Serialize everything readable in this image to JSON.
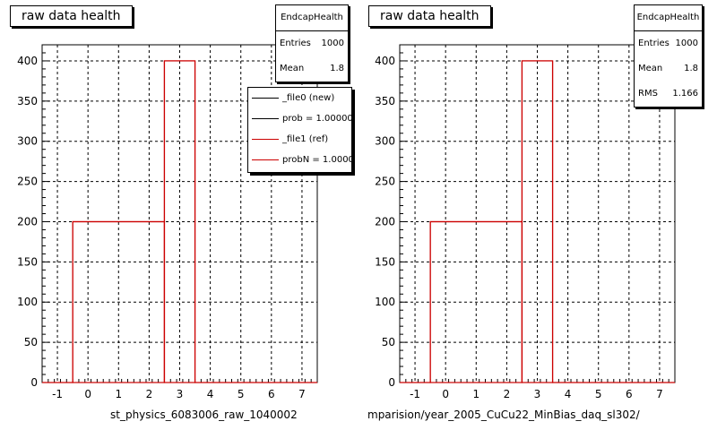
{
  "colors": {
    "frame": "#000000",
    "ref_line": "#cc0000",
    "new_line": "#000000",
    "background": "#ffffff"
  },
  "footer_text": "",
  "panels": [
    {
      "title": "raw data health",
      "xlabel": "st_physics_6083006_raw_1040002",
      "stats": {
        "name": "EndcapHealth",
        "rows": [
          {
            "label": "Entries",
            "value": "1000"
          },
          {
            "label": "Mean",
            "value": "1.8"
          }
        ]
      },
      "legend": [
        {
          "label": "_file0 (new)",
          "color": "#000000"
        },
        {
          "label": "prob = 1.000000",
          "color": "#000000"
        },
        {
          "label": "_file1 (ref)",
          "color": "#cc0000"
        },
        {
          "label": "probN = 1.000000",
          "color": "#cc0000"
        }
      ]
    },
    {
      "title": "raw data health",
      "xlabel": "mparision/year_2005_CuCu22_MinBias_daq_sl302/",
      "stats": {
        "name": "EndcapHealth",
        "rows": [
          {
            "label": "Entries",
            "value": "1000"
          },
          {
            "label": "Mean",
            "value": "1.8"
          },
          {
            "label": "RMS",
            "value": "1.166"
          }
        ]
      },
      "legend": []
    }
  ],
  "chart_data": [
    {
      "type": "bar",
      "title": "raw data health",
      "xlabel": "st_physics_6083006_raw_1040002",
      "ylabel": "",
      "xlim": [
        -1.5,
        7.5
      ],
      "ylim": [
        0,
        420
      ],
      "xticks": [
        -1,
        0,
        1,
        2,
        3,
        4,
        5,
        6,
        7
      ],
      "yticks": [
        0,
        50,
        100,
        150,
        200,
        250,
        300,
        350,
        400
      ],
      "grid": true,
      "legend_position": "top-right",
      "bins": [
        {
          "low": -0.5,
          "high": 2.5,
          "value": 200
        },
        {
          "low": 2.5,
          "high": 3.5,
          "value": 400
        }
      ],
      "series": [
        {
          "name": "_file0 (new)",
          "color": "#000000"
        },
        {
          "name": "_file1 (ref)",
          "color": "#cc0000"
        }
      ]
    },
    {
      "type": "bar",
      "title": "raw data health",
      "xlabel": "mparision/year_2005_CuCu22_MinBias_daq_sl302/",
      "ylabel": "",
      "xlim": [
        -1.5,
        7.5
      ],
      "ylim": [
        0,
        420
      ],
      "xticks": [
        -1,
        0,
        1,
        2,
        3,
        4,
        5,
        6,
        7
      ],
      "yticks": [
        0,
        50,
        100,
        150,
        200,
        250,
        300,
        350,
        400
      ],
      "grid": true,
      "bins": [
        {
          "low": -0.5,
          "high": 2.5,
          "value": 200
        },
        {
          "low": 2.5,
          "high": 3.5,
          "value": 400
        }
      ],
      "series": [
        {
          "color": "#cc0000"
        }
      ]
    }
  ]
}
